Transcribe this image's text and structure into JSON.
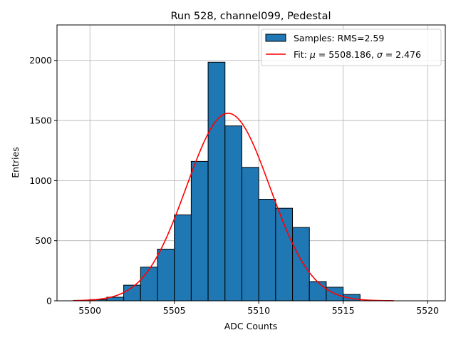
{
  "chart_data": {
    "type": "bar",
    "title": "Run 528, channel099, Pedestal",
    "xlabel": "ADC Counts",
    "ylabel": "Entries",
    "xlim": [
      5498.05,
      5521.05
    ],
    "ylim": [
      0,
      2295
    ],
    "xticks": [
      5500,
      5505,
      5510,
      5515,
      5520
    ],
    "yticks": [
      0,
      500,
      1000,
      1500,
      2000
    ],
    "grid": true,
    "legend_placement": "top-right",
    "histogram": {
      "name": "Samples: RMS=2.59",
      "bin_edges": [
        5500,
        5501,
        5502,
        5503,
        5504,
        5505,
        5506,
        5507,
        5508,
        5509,
        5510,
        5511,
        5512,
        5513,
        5514,
        5515,
        5516
      ],
      "values": [
        10,
        30,
        130,
        280,
        430,
        715,
        1160,
        1985,
        1455,
        1110,
        845,
        770,
        610,
        160,
        113,
        53
      ],
      "color": "#1f77b4"
    },
    "fit": {
      "name": "Fit: μ = 5508.186, σ = 2.476",
      "legend_prefix": "Fit: ",
      "mu_label": "μ",
      "mu_text": " = 5508.186, ",
      "sigma_label": "σ",
      "sigma_text": " = 2.476",
      "mu": 5508.186,
      "sigma": 2.476,
      "amplitude": 1560,
      "x_range": [
        5499,
        5518
      ],
      "color": "#ff0000"
    }
  }
}
